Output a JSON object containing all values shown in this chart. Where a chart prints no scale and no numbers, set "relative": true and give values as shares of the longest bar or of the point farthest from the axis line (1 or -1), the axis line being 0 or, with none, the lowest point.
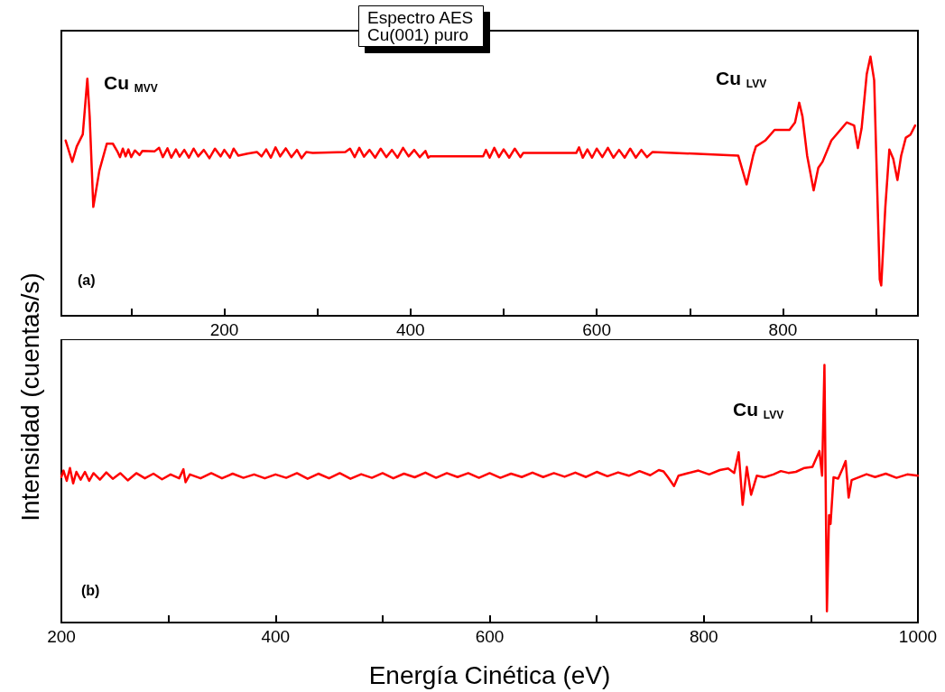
{
  "chart_data": [
    {
      "type": "line",
      "title": "Espectro AES",
      "subtitle": "Cu(001) puro",
      "ylabel": "Intensidad (cuentas/s)",
      "relative": true,
      "tick_labels": "x",
      "xlim": [
        25,
        945
      ],
      "xticks": [
        {
          "value": 100,
          "label": null
        },
        200,
        {
          "value": 300,
          "label": null
        },
        400,
        {
          "value": 500,
          "label": null
        },
        600,
        {
          "value": 700,
          "label": null
        },
        800,
        {
          "value": 900,
          "label": null
        }
      ],
      "annotations": [
        "Cu $_{MVV}$",
        "Cu $_{LVV}$",
        "(a)"
      ],
      "series": [
        {
          "color": "#ff0000",
          "x": [
            29.6,
            36.7,
            41.5,
            48,
            52.9,
            55.4,
            59.3,
            65.8,
            73.8,
            80.3,
            85,
            88,
            91,
            94,
            97,
            100,
            104,
            109,
            112,
            125,
            130,
            134,
            139,
            143,
            148,
            152,
            157,
            162,
            167,
            172,
            178,
            184,
            190,
            196,
            200,
            206,
            210,
            215,
            225,
            235,
            240,
            245,
            250,
            255,
            260,
            266,
            272,
            278,
            283,
            288,
            295,
            330,
            335,
            340,
            345,
            350,
            356,
            362,
            368,
            374,
            380,
            386,
            392,
            398,
            404,
            410,
            416,
            419,
            421,
            478,
            481,
            485,
            490,
            495,
            500,
            506,
            512,
            518,
            521,
            578,
            581,
            585,
            590,
            595,
            600,
            606,
            612,
            618,
            624,
            630,
            636,
            642,
            648,
            654,
            660,
            752,
            761,
            768,
            771,
            781,
            791,
            807,
            813,
            817.5,
            821,
            826,
            833,
            838,
            842.5,
            852,
            868.5,
            876.5,
            880.5,
            884.5,
            890,
            894,
            898,
            904,
            905.6,
            910,
            914.3,
            918.5,
            923,
            927,
            932,
            937,
            942
          ],
          "values": [
            0.676,
            0.594,
            0.653,
            0.7,
            0.915,
            0.769,
            0.42,
            0.56,
            0.664,
            0.664,
            0.635,
            0.612,
            0.645,
            0.615,
            0.642,
            0.612,
            0.638,
            0.62,
            0.636,
            0.634,
            0.648,
            0.612,
            0.646,
            0.61,
            0.642,
            0.614,
            0.64,
            0.61,
            0.645,
            0.615,
            0.64,
            0.608,
            0.645,
            0.615,
            0.64,
            0.61,
            0.645,
            0.618,
            0.626,
            0.632,
            0.615,
            0.642,
            0.61,
            0.65,
            0.615,
            0.646,
            0.612,
            0.64,
            0.608,
            0.632,
            0.628,
            0.632,
            0.645,
            0.612,
            0.648,
            0.614,
            0.64,
            0.61,
            0.645,
            0.612,
            0.64,
            0.61,
            0.648,
            0.615,
            0.64,
            0.612,
            0.636,
            0.61,
            0.615,
            0.615,
            0.64,
            0.61,
            0.648,
            0.612,
            0.642,
            0.61,
            0.645,
            0.612,
            0.628,
            0.628,
            0.65,
            0.61,
            0.642,
            0.61,
            0.645,
            0.612,
            0.648,
            0.61,
            0.64,
            0.61,
            0.645,
            0.61,
            0.64,
            0.612,
            0.632,
            0.618,
            0.507,
            0.618,
            0.653,
            0.676,
            0.717,
            0.717,
            0.746,
            0.822,
            0.769,
            0.618,
            0.484,
            0.571,
            0.594,
            0.676,
            0.746,
            0.734,
            0.647,
            0.723,
            0.932,
            1.0,
            0.909,
            0.14,
            0.117,
            0.42,
            0.641,
            0.606,
            0.524,
            0.618,
            0.687,
            0.699,
            0.734
          ]
        }
      ]
    },
    {
      "type": "line",
      "xlabel": "Energía Cinética (eV)",
      "relative": true,
      "tick_labels": "x",
      "xlim": [
        200,
        1000
      ],
      "xticks": [
        200,
        {
          "value": 300,
          "label": null
        },
        400,
        {
          "value": 500,
          "label": null
        },
        600,
        {
          "value": 700,
          "label": null
        },
        800,
        {
          "value": 900,
          "label": null
        },
        1000
      ],
      "annotations": [
        "Cu $_{LVV}$",
        "(b)"
      ],
      "series": [
        {
          "color": "#ff0000",
          "x": [
            200,
            202,
            205,
            208,
            211,
            214,
            218,
            222,
            226,
            230,
            236,
            242,
            248,
            255,
            262,
            270,
            278,
            286,
            294,
            302,
            310,
            314,
            316,
            320,
            330,
            340,
            350,
            360,
            370,
            380,
            390,
            400,
            410,
            420,
            430,
            440,
            450,
            460,
            470,
            480,
            490,
            500,
            510,
            520,
            530,
            540,
            550,
            560,
            570,
            580,
            590,
            600,
            610,
            620,
            630,
            640,
            650,
            660,
            670,
            680,
            690,
            700,
            710,
            720,
            730,
            740,
            750,
            758,
            762.4,
            766.6,
            772.2,
            776.4,
            785,
            795,
            805,
            815,
            822.8,
            828.4,
            832.6,
            836.3,
            840.2,
            844.2,
            849.5,
            856.5,
            865,
            872,
            879,
            886,
            894,
            901.5,
            908,
            910.5,
            912.7,
            915,
            917,
            918.4,
            921.2,
            925.5,
            929.7,
            932.5,
            935.3,
            938.1,
            952,
            960,
            970,
            980,
            990,
            1000
          ],
          "values": [
            0.565,
            0.59,
            0.55,
            0.6,
            0.54,
            0.585,
            0.555,
            0.585,
            0.55,
            0.58,
            0.555,
            0.583,
            0.558,
            0.58,
            0.552,
            0.58,
            0.56,
            0.578,
            0.556,
            0.575,
            0.56,
            0.595,
            0.545,
            0.575,
            0.56,
            0.58,
            0.56,
            0.578,
            0.562,
            0.575,
            0.56,
            0.575,
            0.562,
            0.58,
            0.558,
            0.578,
            0.56,
            0.58,
            0.558,
            0.576,
            0.562,
            0.58,
            0.56,
            0.578,
            0.564,
            0.582,
            0.562,
            0.58,
            0.565,
            0.58,
            0.562,
            0.58,
            0.562,
            0.578,
            0.565,
            0.582,
            0.565,
            0.58,
            0.566,
            0.582,
            0.565,
            0.585,
            0.568,
            0.583,
            0.57,
            0.588,
            0.572,
            0.592,
            0.587,
            0.564,
            0.53,
            0.57,
            0.58,
            0.59,
            0.575,
            0.592,
            0.598,
            0.581,
            0.661,
            0.457,
            0.604,
            0.496,
            0.57,
            0.564,
            0.575,
            0.588,
            0.581,
            0.585,
            0.6,
            0.604,
            0.666,
            0.57,
            1.0,
            0.044,
            0.417,
            0.383,
            0.564,
            0.559,
            0.598,
            0.627,
            0.485,
            0.553,
            0.576,
            0.565,
            0.578,
            0.562,
            0.575,
            0.57
          ]
        }
      ]
    }
  ]
}
